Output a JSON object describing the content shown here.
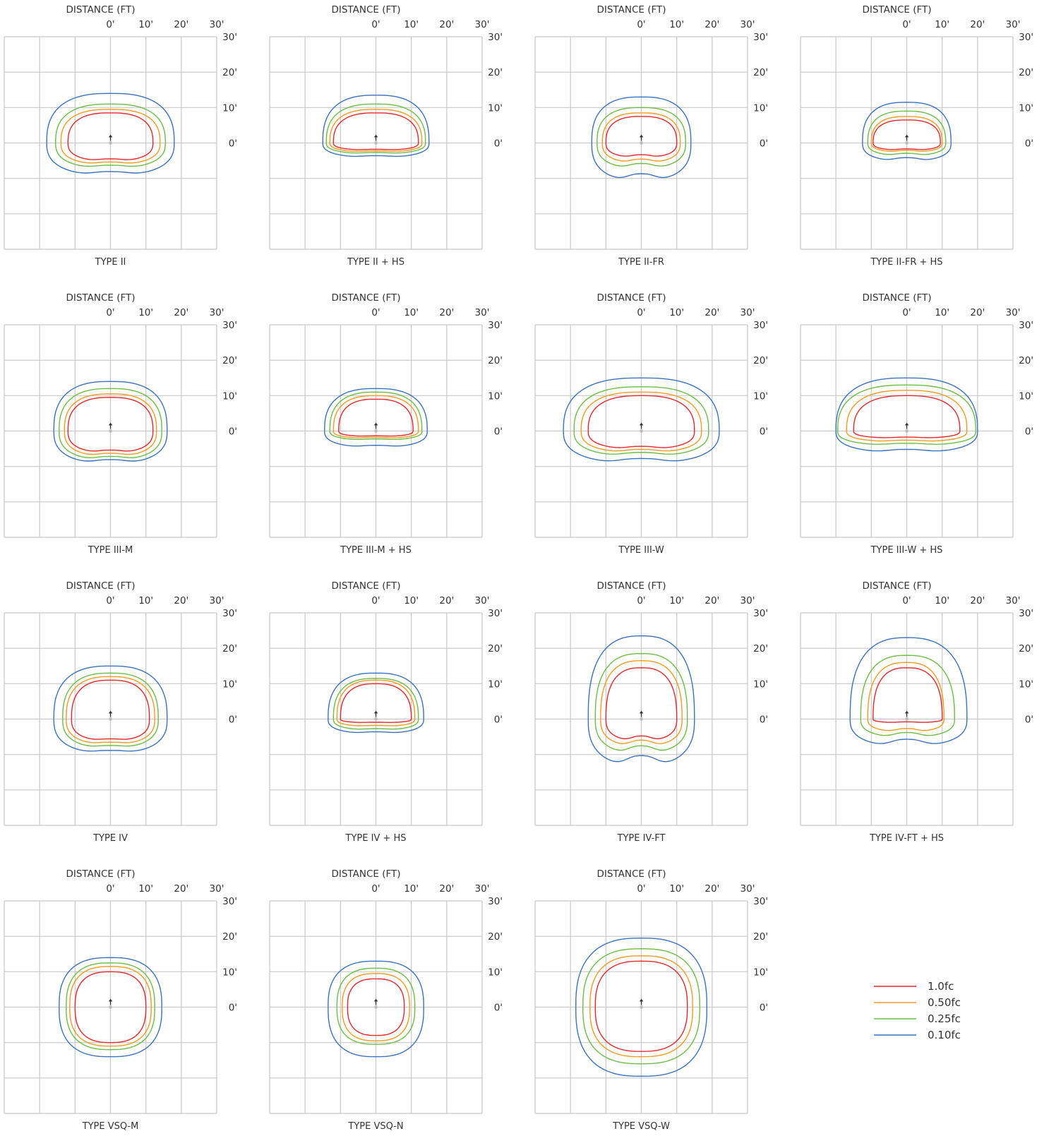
{
  "colors": {
    "grid": "#c8c8c8",
    "fc_1_0": "#e8262b",
    "fc_0_50": "#f39a21",
    "fc_0_25": "#6cbd45",
    "fc_0_10": "#3b72c0",
    "text": "#333333",
    "arrow": "#333333"
  },
  "legend": {
    "items": [
      {
        "label": "1.0fc",
        "color": "#e8262b"
      },
      {
        "label": "0.50fc",
        "color": "#f39a21"
      },
      {
        "label": "0.25fc",
        "color": "#6cbd45"
      },
      {
        "label": "0.10fc",
        "color": "#3b72c0"
      }
    ]
  },
  "chart_data": [
    {
      "type": "isofootcandle",
      "title": "TYPE II",
      "axis_title": "DISTANCE (FT)",
      "xticks": [
        "0'",
        "10'",
        "20'",
        "30'"
      ],
      "yticks": [
        "30'",
        "20'",
        "10'",
        "0'"
      ],
      "xlim": [
        -30,
        30
      ],
      "ylim": [
        -30,
        30
      ],
      "grid": true,
      "series": [
        {
          "name": "1.0fc",
          "top": 8.5,
          "bottom": -5,
          "left": -12,
          "right": 12,
          "front_bump": 0,
          "back_notch": 0.3
        },
        {
          "name": "0.50fc",
          "top": 9.5,
          "bottom": -6,
          "left": -14,
          "right": 14,
          "front_bump": 0,
          "back_notch": 0.3
        },
        {
          "name": "0.25fc",
          "top": 11,
          "bottom": -7,
          "left": -15.5,
          "right": 15.5,
          "front_bump": 0,
          "back_notch": 0.3
        },
        {
          "name": "0.10fc",
          "top": 14,
          "bottom": -9,
          "left": -18,
          "right": 18,
          "front_bump": 0,
          "back_notch": 0.3
        }
      ]
    },
    {
      "type": "isofootcandle",
      "title": "TYPE II  +  HS",
      "axis_title": "DISTANCE (FT)",
      "xticks": [
        "0'",
        "10'",
        "20'",
        "30'"
      ],
      "yticks": [
        "30'",
        "20'",
        "10'",
        "0'"
      ],
      "xlim": [
        -30,
        30
      ],
      "ylim": [
        -30,
        30
      ],
      "grid": true,
      "series": [
        {
          "name": "1.0fc",
          "top": 8.5,
          "bottom": -2,
          "left": -12,
          "right": 12,
          "front_bump": 0,
          "back_notch": 0.3
        },
        {
          "name": "0.50fc",
          "top": 9.5,
          "bottom": -2.5,
          "left": -13,
          "right": 13,
          "front_bump": 0,
          "back_notch": 0.3
        },
        {
          "name": "0.25fc",
          "top": 11,
          "bottom": -3,
          "left": -14,
          "right": 14,
          "front_bump": 0,
          "back_notch": 0.3
        },
        {
          "name": "0.10fc",
          "top": 13.5,
          "bottom": -4,
          "left": -15,
          "right": 15,
          "front_bump": 0,
          "back_notch": 0.3
        }
      ]
    },
    {
      "type": "isofootcandle",
      "title": "TYPE II-FR",
      "axis_title": "DISTANCE (FT)",
      "xticks": [
        "0'",
        "10'",
        "20'",
        "30'"
      ],
      "yticks": [
        "30'",
        "20'",
        "10'",
        "0'"
      ],
      "xlim": [
        -30,
        30
      ],
      "ylim": [
        -30,
        30
      ],
      "grid": true,
      "series": [
        {
          "name": "1.0fc",
          "top": 7.5,
          "bottom": -4,
          "left": -10,
          "right": 10,
          "front_bump": 0,
          "back_notch": 0.5
        },
        {
          "name": "0.50fc",
          "top": 8.5,
          "bottom": -5.5,
          "left": -11,
          "right": 11,
          "front_bump": 0,
          "back_notch": 0.5
        },
        {
          "name": "0.25fc",
          "top": 10,
          "bottom": -7,
          "left": -12.5,
          "right": 12.5,
          "front_bump": 0,
          "back_notch": 0.5
        },
        {
          "name": "0.10fc",
          "top": 13,
          "bottom": -10.5,
          "left": -14,
          "right": 14,
          "front_bump": 0,
          "back_notch": 0.5
        }
      ]
    },
    {
      "type": "isofootcandle",
      "title": "TYPE II-FR  +  HS",
      "axis_title": "DISTANCE (FT)",
      "xticks": [
        "0'",
        "10'",
        "20'",
        "30'"
      ],
      "yticks": [
        "30'",
        "20'",
        "10'",
        "0'"
      ],
      "xlim": [
        -30,
        30
      ],
      "ylim": [
        -30,
        30
      ],
      "grid": true,
      "series": [
        {
          "name": "1.0fc",
          "top": 6.5,
          "bottom": -2,
          "left": -9.5,
          "right": 9.5,
          "front_bump": 0,
          "back_notch": 0.5
        },
        {
          "name": "0.50fc",
          "top": 7.5,
          "bottom": -2.5,
          "left": -10,
          "right": 10,
          "front_bump": 0,
          "back_notch": 0.5
        },
        {
          "name": "0.25fc",
          "top": 9,
          "bottom": -3.5,
          "left": -11,
          "right": 11,
          "front_bump": 0,
          "back_notch": 0.5
        },
        {
          "name": "0.10fc",
          "top": 11.5,
          "bottom": -5,
          "left": -12.5,
          "right": 12.5,
          "front_bump": 0,
          "back_notch": 0.5
        }
      ]
    },
    {
      "type": "isofootcandle",
      "title": "TYPE III-M",
      "axis_title": "DISTANCE (FT)",
      "xticks": [
        "0'",
        "10'",
        "20'",
        "30'"
      ],
      "yticks": [
        "30'",
        "20'",
        "10'",
        "0'"
      ],
      "xlim": [
        -30,
        30
      ],
      "ylim": [
        -30,
        30
      ],
      "grid": true,
      "series": [
        {
          "name": "1.0fc",
          "top": 9.5,
          "bottom": -6,
          "left": -12,
          "right": 12,
          "front_bump": 0,
          "back_notch": 0.3
        },
        {
          "name": "0.50fc",
          "top": 10.5,
          "bottom": -7,
          "left": -13,
          "right": 13,
          "front_bump": 0,
          "back_notch": 0.3
        },
        {
          "name": "0.25fc",
          "top": 12,
          "bottom": -8,
          "left": -14.5,
          "right": 14.5,
          "front_bump": 0,
          "back_notch": 0.3
        },
        {
          "name": "0.10fc",
          "top": 14,
          "bottom": -9,
          "left": -16,
          "right": 16,
          "front_bump": 0,
          "back_notch": 0.3
        }
      ]
    },
    {
      "type": "isofootcandle",
      "title": "TYPE III-M  +  HS",
      "axis_title": "DISTANCE (FT)",
      "xticks": [
        "0'",
        "10'",
        "20'",
        "30'"
      ],
      "yticks": [
        "30'",
        "20'",
        "10'",
        "0'"
      ],
      "xlim": [
        -30,
        30
      ],
      "ylim": [
        -30,
        30
      ],
      "grid": true,
      "series": [
        {
          "name": "1.0fc",
          "top": 9,
          "bottom": -1.5,
          "left": -10.5,
          "right": 10.5,
          "front_bump": 0,
          "back_notch": 0.3
        },
        {
          "name": "0.50fc",
          "top": 10,
          "bottom": -2,
          "left": -12,
          "right": 12,
          "front_bump": 0,
          "back_notch": 0.3
        },
        {
          "name": "0.25fc",
          "top": 11,
          "bottom": -2.5,
          "left": -13,
          "right": 13,
          "front_bump": 0,
          "back_notch": 0.3
        },
        {
          "name": "0.10fc",
          "top": 12,
          "bottom": -4.5,
          "left": -14.5,
          "right": 14.5,
          "front_bump": 0,
          "back_notch": 0.3
        }
      ]
    },
    {
      "type": "isofootcandle",
      "title": "TYPE III-W",
      "axis_title": "DISTANCE (FT)",
      "xticks": [
        "0'",
        "10'",
        "20'",
        "30'"
      ],
      "yticks": [
        "30'",
        "20'",
        "10'",
        "0'"
      ],
      "xlim": [
        -30,
        30
      ],
      "ylim": [
        -30,
        30
      ],
      "grid": true,
      "series": [
        {
          "name": "1.0fc",
          "top": 10,
          "bottom": -5,
          "left": -15,
          "right": 15,
          "front_bump": 0,
          "back_notch": 0.4
        },
        {
          "name": "0.50fc",
          "top": 11,
          "bottom": -6,
          "left": -17,
          "right": 17,
          "front_bump": 0,
          "back_notch": 0.4
        },
        {
          "name": "0.25fc",
          "top": 12.5,
          "bottom": -7,
          "left": -19,
          "right": 19,
          "front_bump": 0,
          "back_notch": 0.4
        },
        {
          "name": "0.10fc",
          "top": 15,
          "bottom": -9,
          "left": -22,
          "right": 22,
          "front_bump": 0,
          "back_notch": 0.4
        }
      ]
    },
    {
      "type": "isofootcandle",
      "title": "TYPE III-W  +  HS",
      "axis_title": "DISTANCE (FT)",
      "xticks": [
        "0'",
        "10'",
        "20'",
        "30'"
      ],
      "yticks": [
        "30'",
        "20'",
        "10'",
        "0'"
      ],
      "xlim": [
        -30,
        30
      ],
      "ylim": [
        -30,
        30
      ],
      "grid": true,
      "series": [
        {
          "name": "1.0fc",
          "top": 10,
          "bottom": -2,
          "left": -15,
          "right": 15,
          "front_bump": 0,
          "back_notch": 0.4
        },
        {
          "name": "0.50fc",
          "top": 11.5,
          "bottom": -3,
          "left": -17,
          "right": 17,
          "front_bump": 0,
          "back_notch": 0.4
        },
        {
          "name": "0.25fc",
          "top": 13,
          "bottom": -4,
          "left": -19.5,
          "right": 19.5,
          "front_bump": 0,
          "back_notch": 0.4
        },
        {
          "name": "0.10fc",
          "top": 15,
          "bottom": -6,
          "left": -20,
          "right": 20,
          "front_bump": 0,
          "back_notch": 0.4
        }
      ]
    },
    {
      "type": "isofootcandle",
      "title": "TYPE IV",
      "axis_title": "DISTANCE (FT)",
      "xticks": [
        "0'",
        "10'",
        "20'",
        "30'"
      ],
      "yticks": [
        "30'",
        "20'",
        "10'",
        "0'"
      ],
      "xlim": [
        -30,
        30
      ],
      "ylim": [
        -30,
        30
      ],
      "grid": true,
      "series": [
        {
          "name": "1.0fc",
          "top": 11,
          "bottom": -6,
          "left": -11,
          "right": 11,
          "front_bump": 0,
          "back_notch": 0.2
        },
        {
          "name": "0.50fc",
          "top": 12,
          "bottom": -7,
          "left": -12.5,
          "right": 12.5,
          "front_bump": 0,
          "back_notch": 0.2
        },
        {
          "name": "0.25fc",
          "top": 13,
          "bottom": -8,
          "left": -13.5,
          "right": 13.5,
          "front_bump": 0,
          "back_notch": 0.2
        },
        {
          "name": "0.10fc",
          "top": 15,
          "bottom": -9.5,
          "left": -16,
          "right": 16,
          "front_bump": 0,
          "back_notch": 0.2
        }
      ]
    },
    {
      "type": "isofootcandle",
      "title": "TYPE IV  +  HS",
      "axis_title": "DISTANCE (FT)",
      "xticks": [
        "0'",
        "10'",
        "20'",
        "30'"
      ],
      "yticks": [
        "30'",
        "20'",
        "10'",
        "0'"
      ],
      "xlim": [
        -30,
        30
      ],
      "ylim": [
        -30,
        30
      ],
      "grid": true,
      "series": [
        {
          "name": "1.0fc",
          "top": 10,
          "bottom": -1,
          "left": -10,
          "right": 10,
          "front_bump": 0,
          "back_notch": 0.3
        },
        {
          "name": "0.50fc",
          "top": 11,
          "bottom": -2,
          "left": -11,
          "right": 11,
          "front_bump": 0,
          "back_notch": 0.3
        },
        {
          "name": "0.25fc",
          "top": 11.5,
          "bottom": -3,
          "left": -12,
          "right": 12,
          "front_bump": 0,
          "back_notch": 0.3
        },
        {
          "name": "0.10fc",
          "top": 13,
          "bottom": -4,
          "left": -13.5,
          "right": 13.5,
          "front_bump": 0,
          "back_notch": 0.3
        }
      ]
    },
    {
      "type": "isofootcandle",
      "title": "TYPE IV-FT",
      "axis_title": "DISTANCE (FT)",
      "xticks": [
        "0'",
        "10'",
        "20'",
        "30'"
      ],
      "yticks": [
        "30'",
        "20'",
        "10'",
        "0'"
      ],
      "xlim": [
        -30,
        30
      ],
      "ylim": [
        -30,
        30
      ],
      "grid": true,
      "series": [
        {
          "name": "1.0fc",
          "top": 14.5,
          "bottom": -6,
          "left": -10,
          "right": 10,
          "front_bump": 0,
          "back_notch": 0.6
        },
        {
          "name": "0.50fc",
          "top": 16.5,
          "bottom": -7.5,
          "left": -11.5,
          "right": 11.5,
          "front_bump": 0,
          "back_notch": 0.6
        },
        {
          "name": "0.25fc",
          "top": 18.5,
          "bottom": -9.5,
          "left": -13,
          "right": 13,
          "front_bump": 0,
          "back_notch": 0.6
        },
        {
          "name": "0.10fc",
          "top": 23.5,
          "bottom": -13,
          "left": -15,
          "right": 15,
          "front_bump": 0,
          "back_notch": 0.6
        }
      ]
    },
    {
      "type": "isofootcandle",
      "title": "TYPE IV-FT  +  HS",
      "axis_title": "DISTANCE (FT)",
      "xticks": [
        "0'",
        "10'",
        "20'",
        "30'"
      ],
      "yticks": [
        "30'",
        "20'",
        "10'",
        "0'"
      ],
      "xlim": [
        -30,
        30
      ],
      "ylim": [
        -30,
        30
      ],
      "grid": true,
      "series": [
        {
          "name": "1.0fc",
          "top": 14.5,
          "bottom": -1,
          "left": -9.5,
          "right": 10,
          "front_bump": 0,
          "back_notch": 0.7
        },
        {
          "name": "0.50fc",
          "top": 16,
          "bottom": -3.5,
          "left": -11,
          "right": 10.5,
          "front_bump": 0,
          "back_notch": 0.7
        },
        {
          "name": "0.25fc",
          "top": 18,
          "bottom": -5,
          "left": -13,
          "right": 13.5,
          "front_bump": 0,
          "back_notch": 0.7
        },
        {
          "name": "0.10fc",
          "top": 23,
          "bottom": -7.5,
          "left": -16,
          "right": 17,
          "front_bump": 0,
          "back_notch": 0.7
        }
      ]
    },
    {
      "type": "isofootcandle",
      "title": "TYPE VSQ-M",
      "axis_title": "DISTANCE (FT)",
      "xticks": [
        "0'",
        "10'",
        "20'",
        "30'"
      ],
      "yticks": [
        "30'",
        "20'",
        "10'",
        "0'"
      ],
      "xlim": [
        -30,
        30
      ],
      "ylim": [
        -30,
        30
      ],
      "grid": true,
      "series": [
        {
          "name": "1.0fc",
          "top": 10,
          "bottom": -10,
          "left": -10,
          "right": 10,
          "front_bump": 0,
          "back_notch": 0
        },
        {
          "name": "0.50fc",
          "top": 11.5,
          "bottom": -11,
          "left": -11.5,
          "right": 11.5,
          "front_bump": 0,
          "back_notch": 0
        },
        {
          "name": "0.25fc",
          "top": 12.5,
          "bottom": -12,
          "left": -12.5,
          "right": 12.5,
          "front_bump": 0,
          "back_notch": 0
        },
        {
          "name": "0.10fc",
          "top": 14,
          "bottom": -14,
          "left": -14.5,
          "right": 14.5,
          "front_bump": 0,
          "back_notch": 0
        }
      ]
    },
    {
      "type": "isofootcandle",
      "title": "TYPE VSQ-N",
      "axis_title": "DISTANCE (FT)",
      "xticks": [
        "0'",
        "10'",
        "20'",
        "30'"
      ],
      "yticks": [
        "30'",
        "20'",
        "10'",
        "0'"
      ],
      "xlim": [
        -30,
        30
      ],
      "ylim": [
        -30,
        30
      ],
      "grid": true,
      "series": [
        {
          "name": "1.0fc",
          "top": 8,
          "bottom": -8,
          "left": -8,
          "right": 8,
          "front_bump": 0,
          "back_notch": 0
        },
        {
          "name": "0.50fc",
          "top": 9.5,
          "bottom": -9.5,
          "left": -9.5,
          "right": 9.5,
          "front_bump": 0,
          "back_notch": 0
        },
        {
          "name": "0.25fc",
          "top": 11,
          "bottom": -10.5,
          "left": -11,
          "right": 11,
          "front_bump": 0,
          "back_notch": 0
        },
        {
          "name": "0.10fc",
          "top": 13,
          "bottom": -14,
          "left": -13.5,
          "right": 13.5,
          "front_bump": 0,
          "back_notch": 0
        }
      ]
    },
    {
      "type": "isofootcandle",
      "title": "TYPE VSQ-W",
      "axis_title": "DISTANCE (FT)",
      "xticks": [
        "0'",
        "10'",
        "20'",
        "30'"
      ],
      "yticks": [
        "30'",
        "20'",
        "10'",
        "0'"
      ],
      "xlim": [
        -30,
        30
      ],
      "ylim": [
        -30,
        30
      ],
      "grid": true,
      "series": [
        {
          "name": "1.0fc",
          "top": 13,
          "bottom": -12.5,
          "left": -13,
          "right": 13,
          "front_bump": 0,
          "back_notch": 0
        },
        {
          "name": "0.50fc",
          "top": 14.5,
          "bottom": -14,
          "left": -14.5,
          "right": 14.5,
          "front_bump": 0,
          "back_notch": 0
        },
        {
          "name": "0.25fc",
          "top": 16.5,
          "bottom": -16,
          "left": -16.5,
          "right": 16.5,
          "front_bump": 0,
          "back_notch": 0
        },
        {
          "name": "0.10fc",
          "top": 19.5,
          "bottom": -19.5,
          "left": -18.5,
          "right": 18.5,
          "front_bump": 0,
          "back_notch": 0
        }
      ]
    }
  ]
}
